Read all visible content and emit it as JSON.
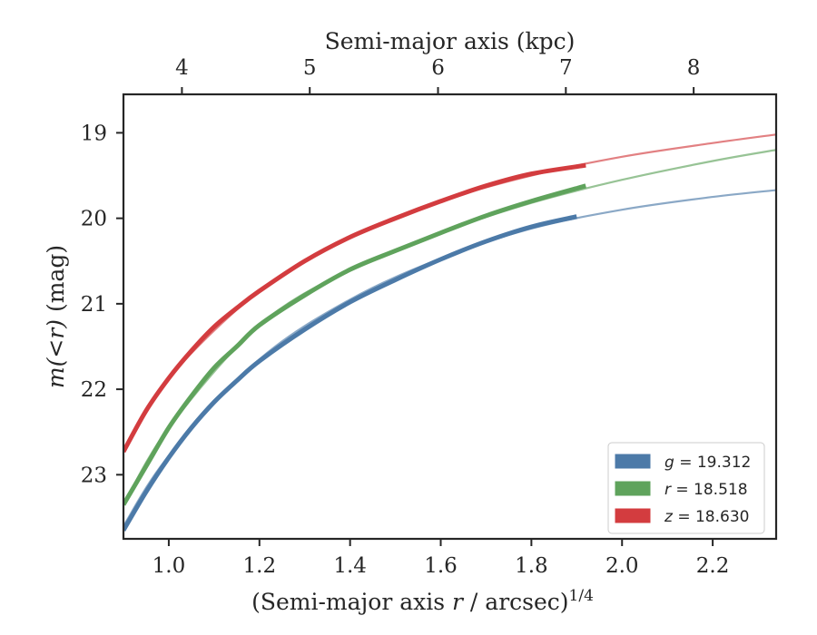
{
  "chart_data": {
    "type": "line",
    "xlabel": "(Semi-major axis r / arcsec)^1/4",
    "xlabel_main": "(Semi-major axis ",
    "xlabel_var": "r",
    "xlabel_unit": " / arcsec)",
    "xlabel_sup": "1/4",
    "ylabel": "m(<r) (mag)",
    "ylabel_math": "m(<r)",
    "ylabel_unit": " (mag)",
    "top_xlabel": "Semi-major axis (kpc)",
    "xlim": [
      0.9,
      2.34
    ],
    "ylim": [
      23.75,
      18.55
    ],
    "y_inverted": true,
    "xticks": [
      "1.0",
      "1.2",
      "1.4",
      "1.6",
      "1.8",
      "2.0",
      "2.2"
    ],
    "xtick_values": [
      1.0,
      1.2,
      1.4,
      1.6,
      1.8,
      2.0,
      2.2
    ],
    "yticks": [
      "19",
      "20",
      "21",
      "22",
      "23"
    ],
    "ytick_values": [
      19,
      20,
      21,
      22,
      23
    ],
    "top_xticks": [
      "4",
      "5",
      "6",
      "7",
      "8"
    ],
    "top_xtick_positions": [
      1.029,
      1.311,
      1.594,
      1.876,
      2.158
    ],
    "grid": false,
    "legend_position": "lower-right",
    "series": [
      {
        "name": "g = 19.312",
        "legend_var": "g",
        "legend_value": "19.312",
        "color": "#4c7aa8",
        "data_x": [
          0.9,
          0.95,
          1.0,
          1.05,
          1.1,
          1.15,
          1.2,
          1.3,
          1.4,
          1.5,
          1.6,
          1.7,
          1.8,
          1.9
        ],
        "data_y": [
          23.65,
          23.2,
          22.8,
          22.45,
          22.15,
          21.9,
          21.67,
          21.3,
          20.98,
          20.72,
          20.48,
          20.27,
          20.1,
          19.98
        ],
        "model_x": [
          0.9,
          1.0,
          1.2,
          1.4,
          1.6,
          1.8,
          2.0,
          2.2,
          2.34
        ],
        "model_y": [
          23.6,
          22.78,
          21.65,
          20.95,
          20.47,
          20.12,
          19.9,
          19.75,
          19.67
        ]
      },
      {
        "name": "r = 18.518",
        "legend_var": "r",
        "legend_value": "18.518",
        "color": "#5fa35c",
        "data_x": [
          0.9,
          0.95,
          1.0,
          1.05,
          1.1,
          1.15,
          1.2,
          1.3,
          1.4,
          1.5,
          1.6,
          1.7,
          1.8,
          1.92
        ],
        "data_y": [
          23.35,
          22.9,
          22.45,
          22.08,
          21.75,
          21.5,
          21.25,
          20.9,
          20.6,
          20.38,
          20.17,
          19.97,
          19.8,
          19.62
        ],
        "model_x": [
          0.9,
          1.0,
          1.2,
          1.4,
          1.6,
          1.8,
          2.0,
          2.2,
          2.34
        ],
        "model_y": [
          23.35,
          22.45,
          21.25,
          20.6,
          20.17,
          19.82,
          19.55,
          19.33,
          19.2
        ]
      },
      {
        "name": "z = 18.630",
        "legend_var": "z",
        "legend_value": "18.630",
        "color": "#d33c3f",
        "data_x": [
          0.9,
          0.95,
          1.0,
          1.05,
          1.1,
          1.15,
          1.2,
          1.3,
          1.4,
          1.5,
          1.6,
          1.7,
          1.8,
          1.92
        ],
        "data_y": [
          22.73,
          22.25,
          21.87,
          21.55,
          21.27,
          21.05,
          20.85,
          20.5,
          20.22,
          20.0,
          19.8,
          19.62,
          19.48,
          19.38
        ],
        "model_x": [
          0.9,
          1.0,
          1.2,
          1.4,
          1.6,
          1.8,
          2.0,
          2.2,
          2.34
        ],
        "model_y": [
          22.73,
          21.87,
          20.85,
          20.22,
          19.8,
          19.5,
          19.28,
          19.12,
          19.02
        ]
      }
    ]
  }
}
